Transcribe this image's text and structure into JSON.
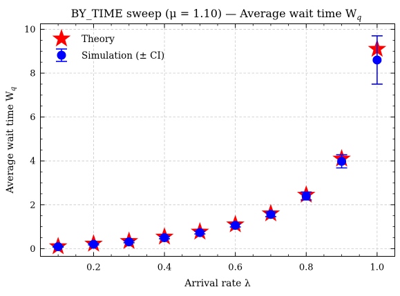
{
  "chart_data": {
    "type": "scatter",
    "title": "BY_TIME sweep (μ = 1.10) — Average wait time W",
    "title_sub": "q",
    "xlabel": "Arrival rate λ",
    "ylabel": "Average wait time W",
    "ylabel_sub": "q",
    "xlim": [
      0.05,
      1.05
    ],
    "ylim": [
      -0.35,
      10.25
    ],
    "xticks": [
      0.2,
      0.4,
      0.6,
      0.8,
      1.0
    ],
    "xtick_labels": [
      "0.2",
      "0.4",
      "0.6",
      "0.8",
      "1.0"
    ],
    "yticks": [
      0,
      2,
      4,
      6,
      8,
      10
    ],
    "ytick_labels": [
      "0",
      "2",
      "4",
      "6",
      "8",
      "10"
    ],
    "grid": true,
    "legend_position": "top-left",
    "x": [
      0.1,
      0.2,
      0.3,
      0.4,
      0.5,
      0.6,
      0.7,
      0.8,
      0.9,
      1.0
    ],
    "series": [
      {
        "name": "Theory",
        "marker": "star",
        "color": "#ff0000",
        "values": [
          0.1,
          0.22,
          0.34,
          0.54,
          0.77,
          1.1,
          1.6,
          2.45,
          4.1,
          9.1
        ]
      },
      {
        "name": "Simulation (± CI)",
        "marker": "circle",
        "color": "#0000ff",
        "values": [
          0.09,
          0.2,
          0.31,
          0.5,
          0.73,
          1.06,
          1.56,
          2.4,
          3.98,
          8.6
        ],
        "ci_low": [
          0.07,
          0.17,
          0.27,
          0.45,
          0.67,
          0.99,
          1.46,
          2.22,
          3.68,
          7.5
        ],
        "ci_high": [
          0.11,
          0.23,
          0.35,
          0.55,
          0.79,
          1.13,
          1.66,
          2.58,
          4.28,
          9.7
        ]
      }
    ]
  }
}
